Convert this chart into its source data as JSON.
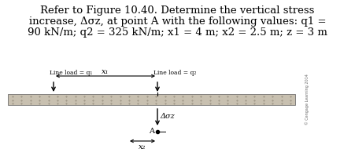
{
  "title_line1": "Refer to Figure 10.40. Determine the vertical stress",
  "title_line2": "increase, Δσz, at point A with the following values: q1 =",
  "title_line3": "90 kN/m; q2 = 325 kN/m; x1 = 4 m; x2 = 2.5 m; z = 3 m",
  "label_q1": "Line load = q₁",
  "label_q2": "Line load = q₂",
  "label_x1": "x₁",
  "label_x2": "x₂",
  "label_delta": "Δσz",
  "label_A": "A",
  "soil_color": "#c8c0b0",
  "soil_dot_color": "#999080",
  "bg_color": "#ffffff",
  "text_color": "#000000",
  "copyright": "© Cengage Learning 2014",
  "title_fontsize": 9.5,
  "small_fontsize": 5.5,
  "label_fontsize": 7.0
}
